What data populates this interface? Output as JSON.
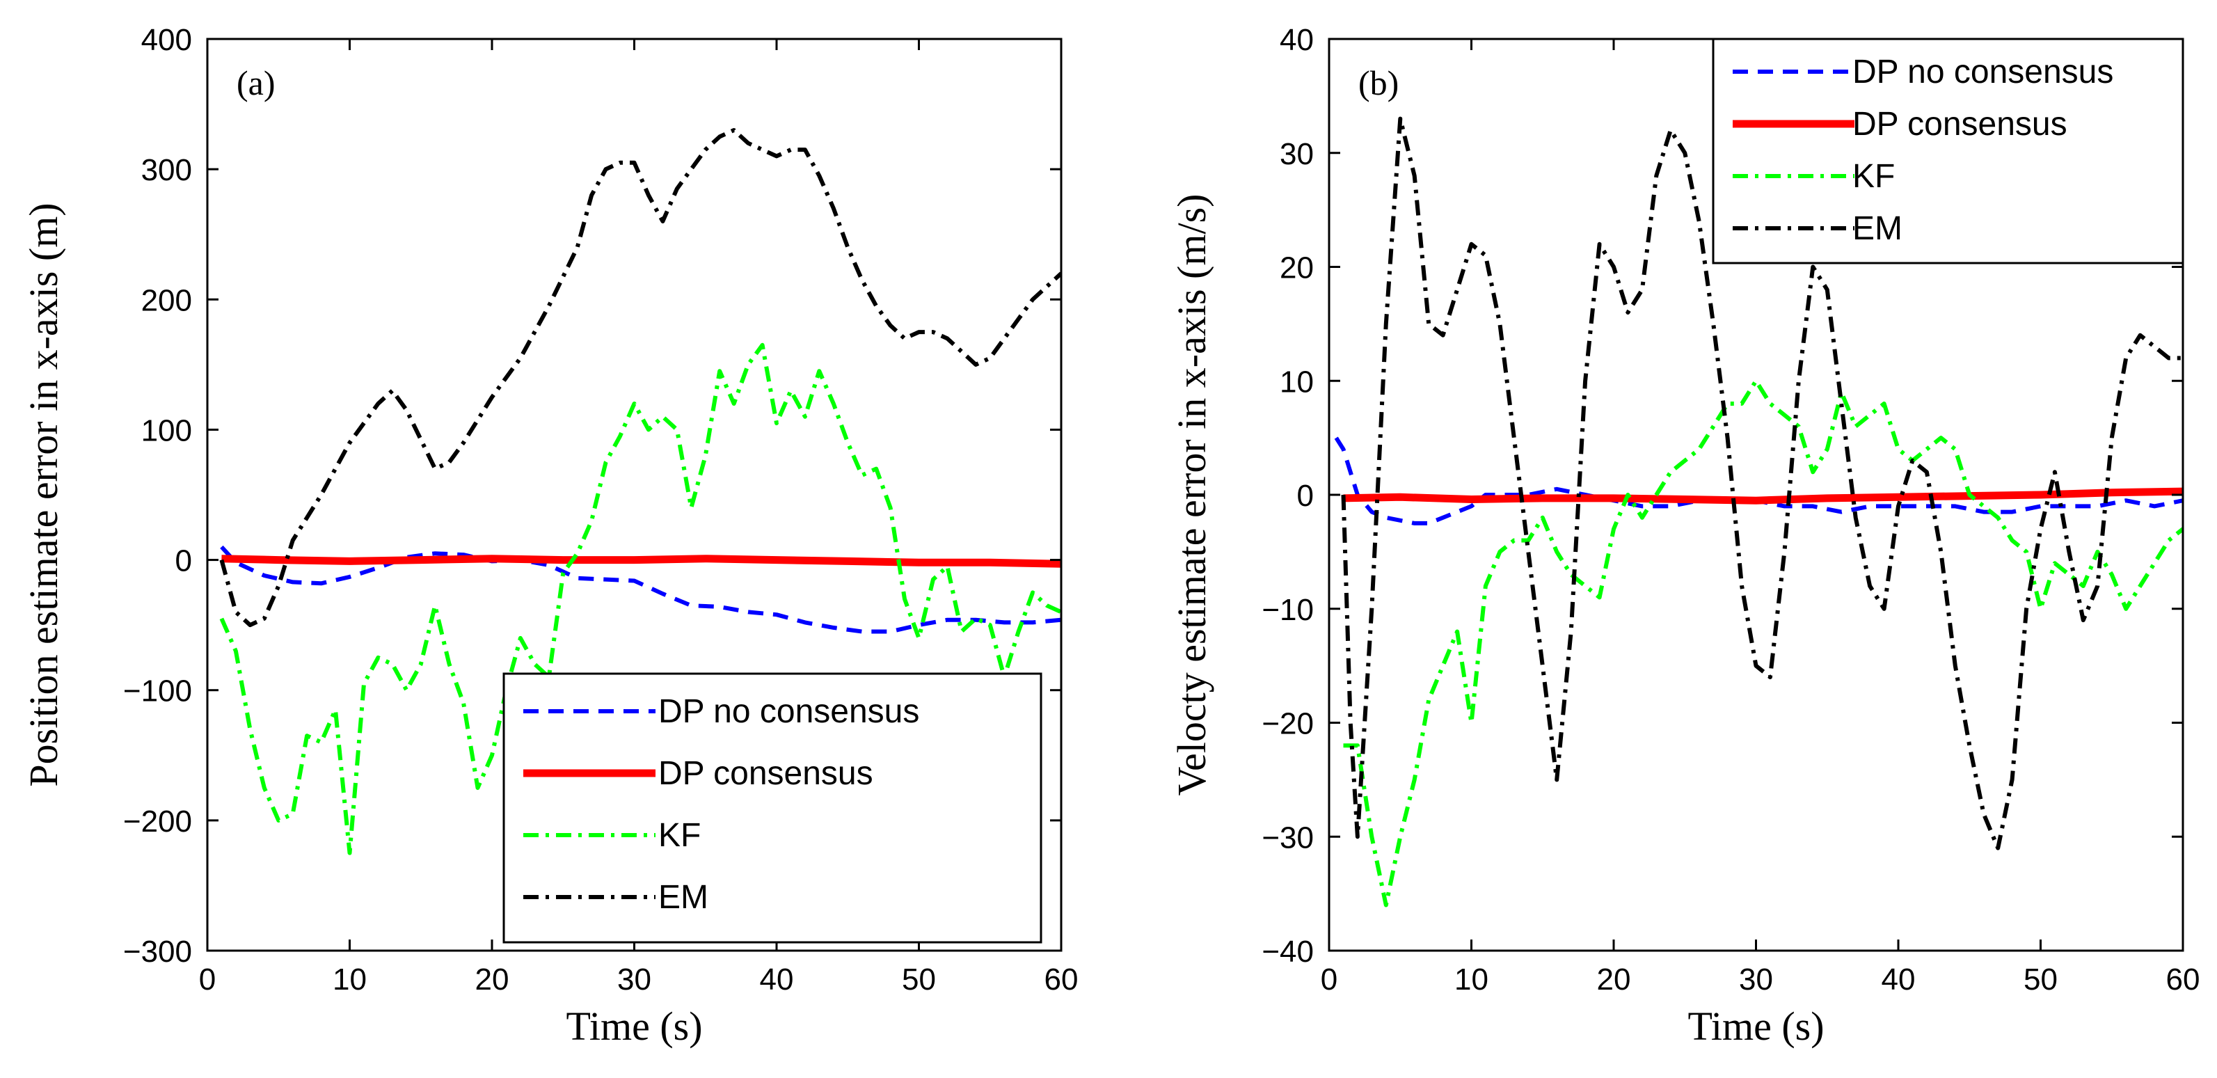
{
  "chart_data": [
    {
      "type": "line",
      "panel_label": "(a)",
      "xlabel": "Time (s)",
      "ylabel": "Position estimate error in x-axis (m)",
      "xlim": [
        0,
        60
      ],
      "ylim": [
        -300,
        400
      ],
      "xticks": [
        0,
        10,
        20,
        30,
        40,
        50,
        60
      ],
      "yticks": [
        -300,
        -200,
        -100,
        0,
        100,
        200,
        300,
        400
      ],
      "xtick_labels": [
        "0",
        "10",
        "20",
        "30",
        "40",
        "50",
        "60"
      ],
      "ytick_labels": [
        "−300",
        "−200",
        "−100",
        "0",
        "100",
        "200",
        "300",
        "400"
      ],
      "legend_position": "bottom-right",
      "series": [
        {
          "name": "DP no consensus",
          "color": "#0000ff",
          "dash": "dashed",
          "x": [
            1,
            2,
            4,
            6,
            8,
            10,
            12,
            14,
            16,
            18,
            20,
            22,
            24,
            26,
            28,
            30,
            32,
            34,
            36,
            38,
            40,
            42,
            44,
            46,
            48,
            50,
            52,
            54,
            56,
            58,
            60
          ],
          "y": [
            10,
            -2,
            -12,
            -17,
            -18,
            -13,
            -6,
            2,
            5,
            4,
            -1,
            0,
            -4,
            -14,
            -15,
            -16,
            -26,
            -35,
            -36,
            -40,
            -42,
            -48,
            -52,
            -55,
            -55,
            -50,
            -46,
            -46,
            -48,
            -48,
            -46
          ]
        },
        {
          "name": "DP consensus",
          "color": "#ff0000",
          "dash": "solid",
          "x": [
            1,
            5,
            10,
            15,
            20,
            25,
            30,
            35,
            40,
            45,
            50,
            55,
            60
          ],
          "y": [
            1,
            0,
            -1,
            0,
            1,
            0,
            0,
            1,
            0,
            -1,
            -2,
            -2,
            -3
          ]
        },
        {
          "name": "KF",
          "color": "#00ff00",
          "dash": "dashdot",
          "x": [
            1,
            2,
            3,
            4,
            5,
            6,
            7,
            8,
            9,
            10,
            11,
            12,
            13,
            14,
            15,
            16,
            17,
            18,
            19,
            20,
            21,
            22,
            23,
            24,
            25,
            26,
            27,
            28,
            29,
            30,
            31,
            32,
            33,
            34,
            35,
            36,
            37,
            38,
            39,
            40,
            41,
            42,
            43,
            44,
            45,
            46,
            47,
            48,
            49,
            50,
            51,
            52,
            53,
            54,
            55,
            56,
            57,
            58,
            59,
            60
          ],
          "y": [
            -45,
            -70,
            -130,
            -175,
            -200,
            -195,
            -135,
            -140,
            -115,
            -225,
            -95,
            -75,
            -80,
            -100,
            -80,
            -35,
            -80,
            -110,
            -175,
            -150,
            -100,
            -60,
            -80,
            -90,
            -10,
            5,
            30,
            75,
            95,
            120,
            100,
            110,
            100,
            40,
            80,
            145,
            120,
            150,
            165,
            105,
            130,
            110,
            145,
            120,
            90,
            65,
            70,
            40,
            -30,
            -60,
            -15,
            -5,
            -55,
            -45,
            -50,
            -90,
            -55,
            -25,
            -35,
            -40
          ]
        },
        {
          "name": "EM",
          "color": "#000000",
          "dash": "dashdot",
          "x": [
            1,
            2,
            3,
            4,
            5,
            6,
            8,
            10,
            12,
            13,
            14,
            16,
            17,
            18,
            20,
            22,
            24,
            26,
            27,
            28,
            29,
            30,
            31,
            32,
            33,
            34,
            35,
            36,
            37,
            38,
            39,
            40,
            41,
            42,
            43,
            44,
            45,
            46,
            47,
            48,
            49,
            50,
            51,
            52,
            53,
            54,
            55,
            56,
            57,
            58,
            59,
            60
          ],
          "y": [
            0,
            -40,
            -50,
            -45,
            -20,
            15,
            50,
            90,
            120,
            130,
            115,
            70,
            75,
            90,
            125,
            155,
            195,
            240,
            280,
            300,
            305,
            305,
            280,
            260,
            285,
            300,
            315,
            325,
            330,
            320,
            315,
            310,
            315,
            315,
            295,
            270,
            240,
            215,
            195,
            180,
            170,
            175,
            175,
            170,
            160,
            150,
            155,
            170,
            185,
            200,
            210,
            220
          ]
        }
      ]
    },
    {
      "type": "line",
      "panel_label": "(b)",
      "xlabel": "Time (s)",
      "ylabel": "Velocty estimate error in x-axis (m/s)",
      "xlim": [
        0,
        60
      ],
      "ylim": [
        -40,
        40
      ],
      "xticks": [
        0,
        10,
        20,
        30,
        40,
        50,
        60
      ],
      "yticks": [
        -40,
        -30,
        -20,
        -10,
        0,
        10,
        20,
        30,
        40
      ],
      "xtick_labels": [
        "0",
        "10",
        "20",
        "30",
        "40",
        "50",
        "60"
      ],
      "ytick_labels": [
        "−40",
        "−30",
        "−20",
        "−10",
        "0",
        "10",
        "20",
        "30",
        "40"
      ],
      "legend_position": "top-right",
      "series": [
        {
          "name": "DP no consensus",
          "color": "#0000ff",
          "dash": "dashed",
          "x": [
            0.5,
            1,
            2,
            3,
            4,
            6,
            7,
            8,
            10,
            11,
            12,
            14,
            16,
            18,
            20,
            22,
            24,
            26,
            28,
            30,
            32,
            34,
            36,
            38,
            40,
            42,
            44,
            46,
            48,
            50,
            52,
            54,
            56,
            58,
            60
          ],
          "y": [
            5,
            4,
            0,
            -1.5,
            -2,
            -2.5,
            -2.5,
            -2,
            -1,
            0,
            0,
            0,
            0.5,
            0,
            -0.5,
            -1,
            -1,
            -0.5,
            -0.5,
            -0.5,
            -1,
            -1,
            -1.5,
            -1,
            -1,
            -1,
            -1,
            -1.5,
            -1.5,
            -1,
            -1,
            -1,
            -0.5,
            -1,
            -0.5
          ]
        },
        {
          "name": "DP consensus",
          "color": "#ff0000",
          "dash": "solid",
          "x": [
            1,
            5,
            10,
            15,
            20,
            25,
            30,
            35,
            40,
            45,
            50,
            55,
            60
          ],
          "y": [
            -0.3,
            -0.2,
            -0.4,
            -0.3,
            -0.3,
            -0.4,
            -0.5,
            -0.3,
            -0.2,
            -0.1,
            0.0,
            0.2,
            0.3
          ]
        },
        {
          "name": "KF",
          "color": "#00ff00",
          "dash": "dashdot",
          "x": [
            1,
            2,
            3,
            4,
            5,
            6,
            7,
            8,
            9,
            10,
            11,
            12,
            13,
            14,
            15,
            16,
            17,
            18,
            19,
            20,
            21,
            22,
            23,
            24,
            25,
            26,
            27,
            28,
            29,
            30,
            31,
            32,
            33,
            34,
            35,
            36,
            37,
            38,
            39,
            40,
            41,
            42,
            43,
            44,
            45,
            46,
            47,
            48,
            49,
            50,
            51,
            52,
            53,
            54,
            55,
            56,
            57,
            58,
            59,
            60
          ],
          "y": [
            -22,
            -22,
            -30,
            -36,
            -30,
            -25,
            -18,
            -15,
            -12,
            -20,
            -8,
            -5,
            -4,
            -4,
            -2,
            -5,
            -7,
            -8,
            -9,
            -3,
            0,
            -2,
            0,
            2,
            3,
            4,
            6,
            8,
            8,
            10,
            8,
            7,
            6,
            2,
            4,
            9,
            6,
            7,
            8,
            4,
            3,
            4,
            5,
            4,
            0,
            -1,
            -2,
            -4,
            -5,
            -10,
            -6,
            -7,
            -8,
            -5,
            -7,
            -10,
            -8,
            -6,
            -4,
            -3
          ]
        },
        {
          "name": "EM",
          "color": "#000000",
          "dash": "dashdot",
          "x": [
            1,
            1.5,
            2,
            3,
            4,
            5,
            6,
            7,
            8,
            9,
            10,
            11,
            12,
            13,
            14,
            15,
            16,
            17,
            18,
            19,
            20,
            21,
            22,
            23,
            24,
            25,
            26,
            27,
            28,
            29,
            30,
            31,
            32,
            33,
            34,
            35,
            36,
            37,
            38,
            39,
            40,
            41,
            42,
            43,
            44,
            45,
            46,
            47,
            48,
            49,
            50,
            51,
            52,
            53,
            54,
            55,
            56,
            57,
            58,
            59,
            60
          ],
          "y": [
            0,
            -20,
            -30,
            -10,
            15,
            33,
            28,
            15,
            14,
            18,
            22,
            21,
            15,
            5,
            -5,
            -15,
            -25,
            -12,
            10,
            22,
            20,
            16,
            18,
            28,
            32,
            30,
            24,
            15,
            5,
            -8,
            -15,
            -16,
            -5,
            10,
            20,
            18,
            8,
            -2,
            -8,
            -10,
            -1,
            3,
            2,
            -5,
            -15,
            -22,
            -28,
            -31,
            -25,
            -10,
            -3,
            2,
            -5,
            -11,
            -8,
            5,
            12,
            14,
            13,
            12,
            12
          ]
        }
      ]
    }
  ]
}
